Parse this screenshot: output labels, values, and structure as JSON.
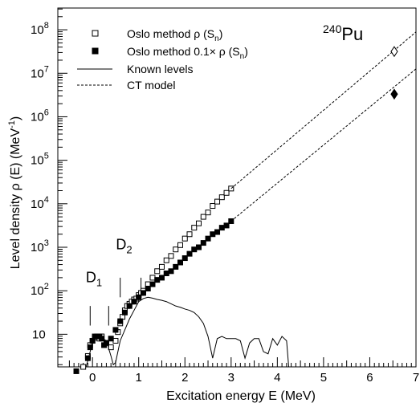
{
  "chart_data": {
    "type": "scatter",
    "nucleus": {
      "mass": "240",
      "symbol": "Pu"
    },
    "xlabel": "Excitation energy E (MeV)",
    "ylabel": {
      "prefix": "Level density ρ (E) (MeV",
      "exp": "-1",
      "suffix": ")"
    },
    "xlim": [
      -0.75,
      7.0
    ],
    "ylim_log10": [
      0.25,
      8.5
    ],
    "yscale": "log",
    "grid": false,
    "x_ticks": [
      "0",
      "1",
      "2",
      "3",
      "4",
      "5",
      "6",
      "7"
    ],
    "y_ticks": [
      {
        "base": "10",
        "exp": ""
      },
      {
        "base": "10",
        "exp": "2"
      },
      {
        "base": "10",
        "exp": "3"
      },
      {
        "base": "10",
        "exp": "4"
      },
      {
        "base": "10",
        "exp": "5"
      },
      {
        "base": "10",
        "exp": "6"
      },
      {
        "base": "10",
        "exp": "7"
      },
      {
        "base": "10",
        "exp": "8"
      }
    ],
    "legend": {
      "position": "top-left",
      "items": [
        {
          "marker": "open-square",
          "parts": [
            "Oslo method ρ (S",
            "n",
            ")"
          ]
        },
        {
          "marker": "filled-square",
          "parts": [
            "Oslo method 0.1× ρ (S",
            "n",
            ")"
          ]
        },
        {
          "marker": "solid-line",
          "parts": [
            "Known levels"
          ]
        },
        {
          "marker": "dashed-line",
          "parts": [
            "CT model"
          ]
        }
      ]
    },
    "annotations": [
      {
        "base": "D",
        "sub": "1",
        "x": 0.1,
        "log10y": 2.2
      },
      {
        "base": "D",
        "sub": "2",
        "x": 0.75,
        "log10y": 2.95
      }
    ],
    "marker_lines": [
      {
        "x": -0.05,
        "log10y_range": [
          1.2,
          1.65
        ]
      },
      {
        "x": 0.35,
        "log10y_range": [
          1.2,
          1.65
        ]
      },
      {
        "x": 0.6,
        "log10y_range": [
          1.85,
          2.3
        ]
      },
      {
        "x": 1.05,
        "log10y_range": [
          1.85,
          2.3
        ]
      }
    ],
    "series": [
      {
        "name": "Oslo method ρ (Sn)",
        "style": "open-square",
        "x": [
          -0.2,
          -0.1,
          -0.05,
          0.0,
          0.05,
          0.1,
          0.15,
          0.2,
          0.3,
          0.4,
          0.5,
          0.55,
          0.6,
          0.65,
          0.7,
          0.75,
          0.8,
          0.85,
          0.9,
          0.95,
          1.0,
          1.05,
          1.1,
          1.2,
          1.3,
          1.4,
          1.5,
          1.6,
          1.7,
          1.8,
          1.9,
          2.0,
          2.1,
          2.2,
          2.3,
          2.4,
          2.5,
          2.6,
          2.7,
          2.8,
          2.9,
          3.0
        ],
        "log10y": [
          0.25,
          0.5,
          0.75,
          0.85,
          0.92,
          0.95,
          0.9,
          0.95,
          0.8,
          0.7,
          0.85,
          1.05,
          1.25,
          1.4,
          1.55,
          1.65,
          1.7,
          1.75,
          1.8,
          1.82,
          1.9,
          1.95,
          2.0,
          2.15,
          2.3,
          2.45,
          2.55,
          2.7,
          2.8,
          2.95,
          3.05,
          3.2,
          3.3,
          3.45,
          3.55,
          3.7,
          3.8,
          3.95,
          4.05,
          4.15,
          4.25,
          4.35
        ]
      },
      {
        "name": "Oslo method 0.1×ρ (Sn)",
        "style": "filled-square",
        "x": [
          -0.35,
          -0.1,
          -0.05,
          0.0,
          0.05,
          0.1,
          0.15,
          0.2,
          0.25,
          0.3,
          0.4,
          0.5,
          0.6,
          0.7,
          0.8,
          0.9,
          1.0,
          1.1,
          1.2,
          1.3,
          1.4,
          1.5,
          1.6,
          1.7,
          1.8,
          1.9,
          2.0,
          2.1,
          2.2,
          2.3,
          2.4,
          2.5,
          2.6,
          2.7,
          2.8,
          2.9,
          3.0
        ],
        "log10y": [
          0.15,
          0.45,
          0.7,
          0.85,
          0.95,
          0.95,
          0.95,
          0.9,
          0.75,
          0.8,
          0.9,
          1.1,
          1.3,
          1.5,
          1.65,
          1.75,
          1.85,
          1.95,
          2.05,
          2.15,
          2.25,
          2.3,
          2.4,
          2.45,
          2.55,
          2.65,
          2.75,
          2.85,
          2.95,
          3.0,
          3.1,
          3.2,
          3.3,
          3.35,
          3.45,
          3.5,
          3.6
        ]
      },
      {
        "name": "Known levels",
        "style": "solid-line",
        "x": [
          -0.15,
          -0.05,
          0.0,
          0.05,
          0.1,
          0.15,
          0.2,
          0.3,
          0.4,
          0.45,
          0.5,
          0.55,
          0.6,
          0.7,
          0.8,
          0.9,
          1.0,
          1.1,
          1.2,
          1.3,
          1.4,
          1.5,
          1.6,
          1.7,
          1.8,
          1.9,
          2.0,
          2.1,
          2.2,
          2.3,
          2.4,
          2.5,
          2.6,
          2.7,
          2.8,
          2.9,
          3.0,
          3.1,
          3.2,
          3.3,
          3.4,
          3.5,
          3.6,
          3.7,
          3.8,
          3.9,
          4.0,
          4.1,
          4.2,
          4.25
        ],
        "log10y": [
          0.2,
          0.6,
          0.85,
          0.95,
          0.95,
          0.9,
          0.92,
          0.85,
          0.5,
          0.3,
          0.35,
          0.6,
          0.85,
          1.1,
          1.35,
          1.55,
          1.75,
          1.82,
          1.85,
          1.83,
          1.8,
          1.78,
          1.75,
          1.7,
          1.65,
          1.62,
          1.58,
          1.55,
          1.5,
          1.4,
          1.25,
          0.95,
          0.45,
          0.9,
          0.95,
          0.9,
          0.9,
          0.9,
          0.85,
          0.45,
          0.8,
          0.9,
          0.9,
          0.6,
          0.55,
          0.9,
          0.75,
          0.95,
          0.85,
          0.2
        ]
      },
      {
        "name": "CT model",
        "style": "dashed-line",
        "segments": [
          {
            "x": [
              3.0,
              7.0
            ],
            "log10y": [
              4.35,
              7.95
            ]
          },
          {
            "x": [
              3.0,
              7.0
            ],
            "log10y": [
              3.6,
              7.1
            ]
          }
        ]
      }
    ],
    "sn_points": [
      {
        "x": 6.53,
        "log10y": 7.5,
        "style": "open-diamond"
      },
      {
        "x": 6.53,
        "log10y": 6.52,
        "style": "filled-diamond"
      }
    ]
  }
}
